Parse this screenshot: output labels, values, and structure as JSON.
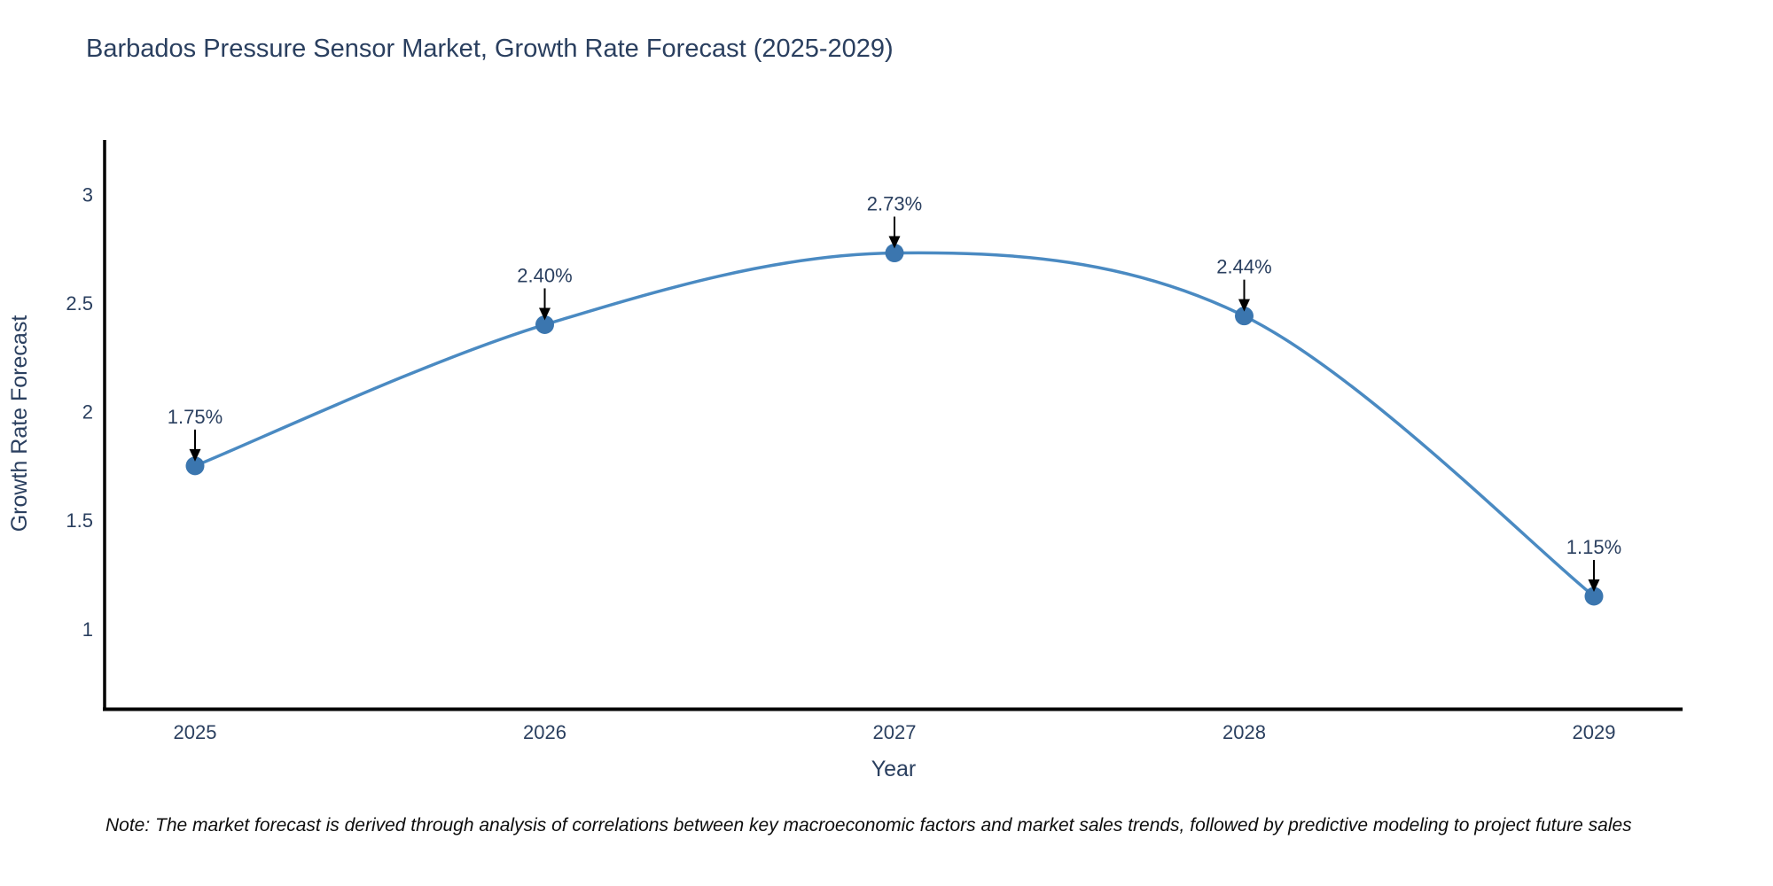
{
  "title": "Barbados Pressure Sensor Market, Growth Rate Forecast (2025-2029)",
  "note": {
    "text": "Note: The market forecast is derived through analysis of correlations between key macroeconomic factors and market sales trends, followed by predictive modeling to project future sales"
  },
  "chart_data": {
    "type": "line",
    "title": "Barbados Pressure Sensor Market, Growth Rate Forecast (2025-2029)",
    "xlabel": "Year",
    "ylabel": "Growth Rate Forecast",
    "x": [
      2025,
      2026,
      2027,
      2028,
      2029
    ],
    "xticks": [
      "2025",
      "2026",
      "2027",
      "2028",
      "2029"
    ],
    "values": [
      1.75,
      2.4,
      2.73,
      2.44,
      1.15
    ],
    "point_labels": [
      "1.75%",
      "2.40%",
      "2.73%",
      "2.44%",
      "1.15%"
    ],
    "ytick_labels": [
      "1",
      "1.5",
      "2",
      "2.5",
      "3"
    ],
    "ytick_values": [
      1,
      1.5,
      2,
      2.5,
      3
    ],
    "ylim": [
      0.63,
      3.25
    ],
    "line_shape": "spline",
    "grid": false,
    "legend": "none",
    "colors": {
      "line": "#4a8ac2",
      "marker": "#3b76af",
      "axis": "#000000",
      "text": "#2a3f5f",
      "annotation_arrow": "#000000",
      "background": "#ffffff"
    }
  }
}
